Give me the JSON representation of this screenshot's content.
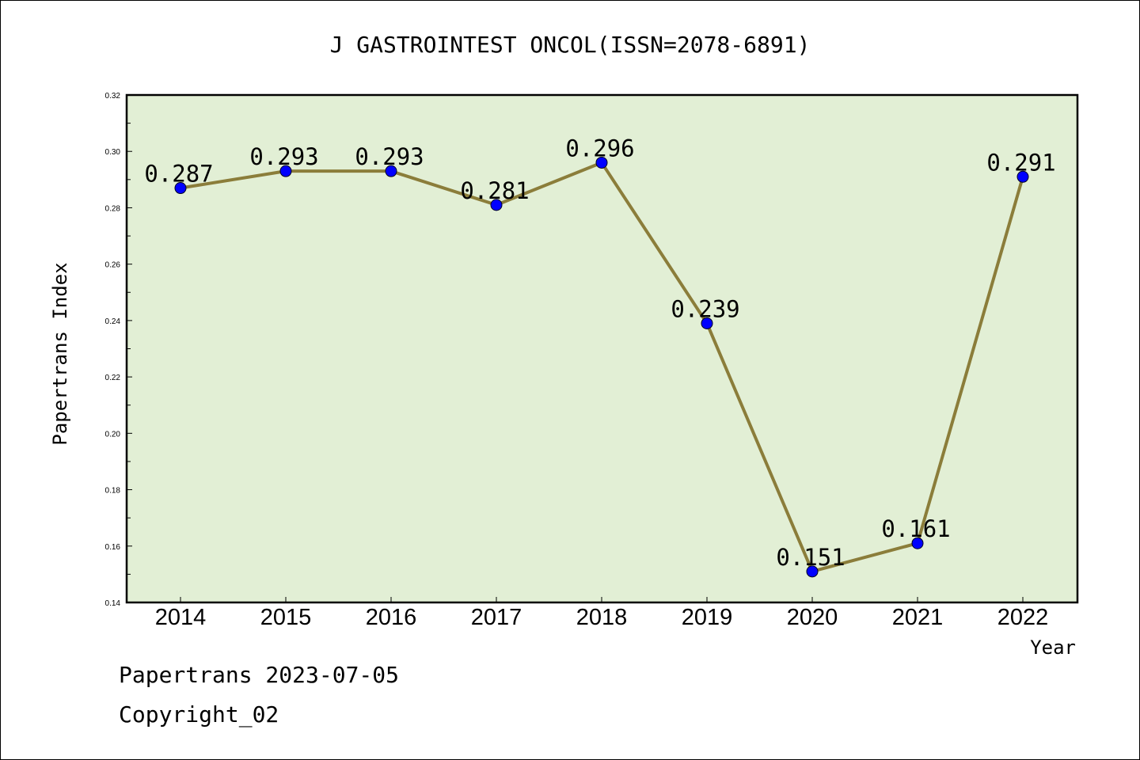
{
  "footer": {
    "date_line": "Papertrans 2023-07-05",
    "copyright": "Copyright_02"
  },
  "colors": {
    "plot_background": "#e2efd5",
    "line": "#8b7d3a",
    "marker": "#0000ff"
  },
  "chart_data": {
    "type": "line",
    "title": "J GASTROINTEST ONCOL(ISSN=2078-6891)",
    "xlabel": "Year",
    "ylabel": "Papertrans Index",
    "categories": [
      "2014",
      "2015",
      "2016",
      "2017",
      "2018",
      "2019",
      "2020",
      "2021",
      "2022"
    ],
    "values": [
      0.287,
      0.293,
      0.293,
      0.281,
      0.296,
      0.239,
      0.151,
      0.161,
      0.291
    ],
    "data_labels": [
      "0.287",
      "0.293",
      "0.293",
      "0.281",
      "0.296",
      "0.239",
      "0.151",
      "0.161",
      "0.291"
    ],
    "ylim": [
      0.14,
      0.32
    ],
    "yticks": [
      "0.14",
      "0.16",
      "0.18",
      "0.20",
      "0.22",
      "0.24",
      "0.26",
      "0.28",
      "0.30",
      "0.32"
    ],
    "grid": false,
    "legend": "none"
  }
}
